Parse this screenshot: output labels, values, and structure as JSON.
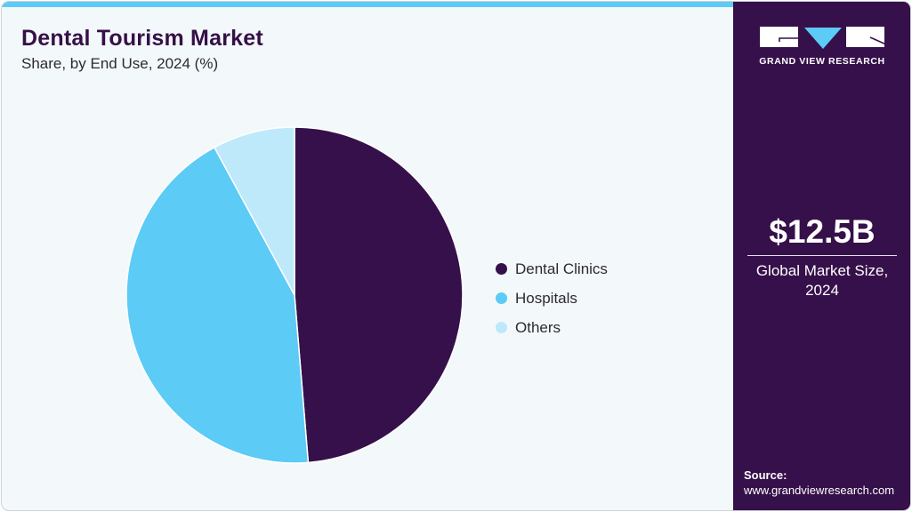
{
  "header": {
    "title": "Dental Tourism Market",
    "subtitle": "Share, by End Use, 2024 (%)"
  },
  "colors": {
    "accent_bar": "#5ccbf5",
    "dental_clinics": "#36104a",
    "hospitals": "#5ccbf5",
    "others": "#bde9fa",
    "side_panel": "#36104a"
  },
  "legend": [
    {
      "label": "Dental Clinics",
      "color": "#36104a"
    },
    {
      "label": "Hospitals",
      "color": "#5ccbf5"
    },
    {
      "label": "Others",
      "color": "#bde9fa"
    }
  ],
  "side_panel": {
    "logo_text": "GRAND VIEW RESEARCH",
    "market_value": "$12.5B",
    "market_label_line1": "Global Market Size,",
    "market_label_line2": "2024",
    "source_label": "Source:",
    "source_url": "www.grandviewresearch.com"
  },
  "chart_data": {
    "type": "pie",
    "title": "Dental Tourism Market",
    "subtitle": "Share, by End Use, 2024 (%)",
    "categories": [
      "Dental Clinics",
      "Hospitals",
      "Others"
    ],
    "values": [
      48.7,
      43.4,
      7.9
    ],
    "colors": [
      "#36104a",
      "#5ccbf5",
      "#bde9fa"
    ],
    "start_angle_deg": 0,
    "direction": "clockwise",
    "legend_position": "right",
    "annotations": [
      "$12.5B Global Market Size, 2024"
    ]
  }
}
